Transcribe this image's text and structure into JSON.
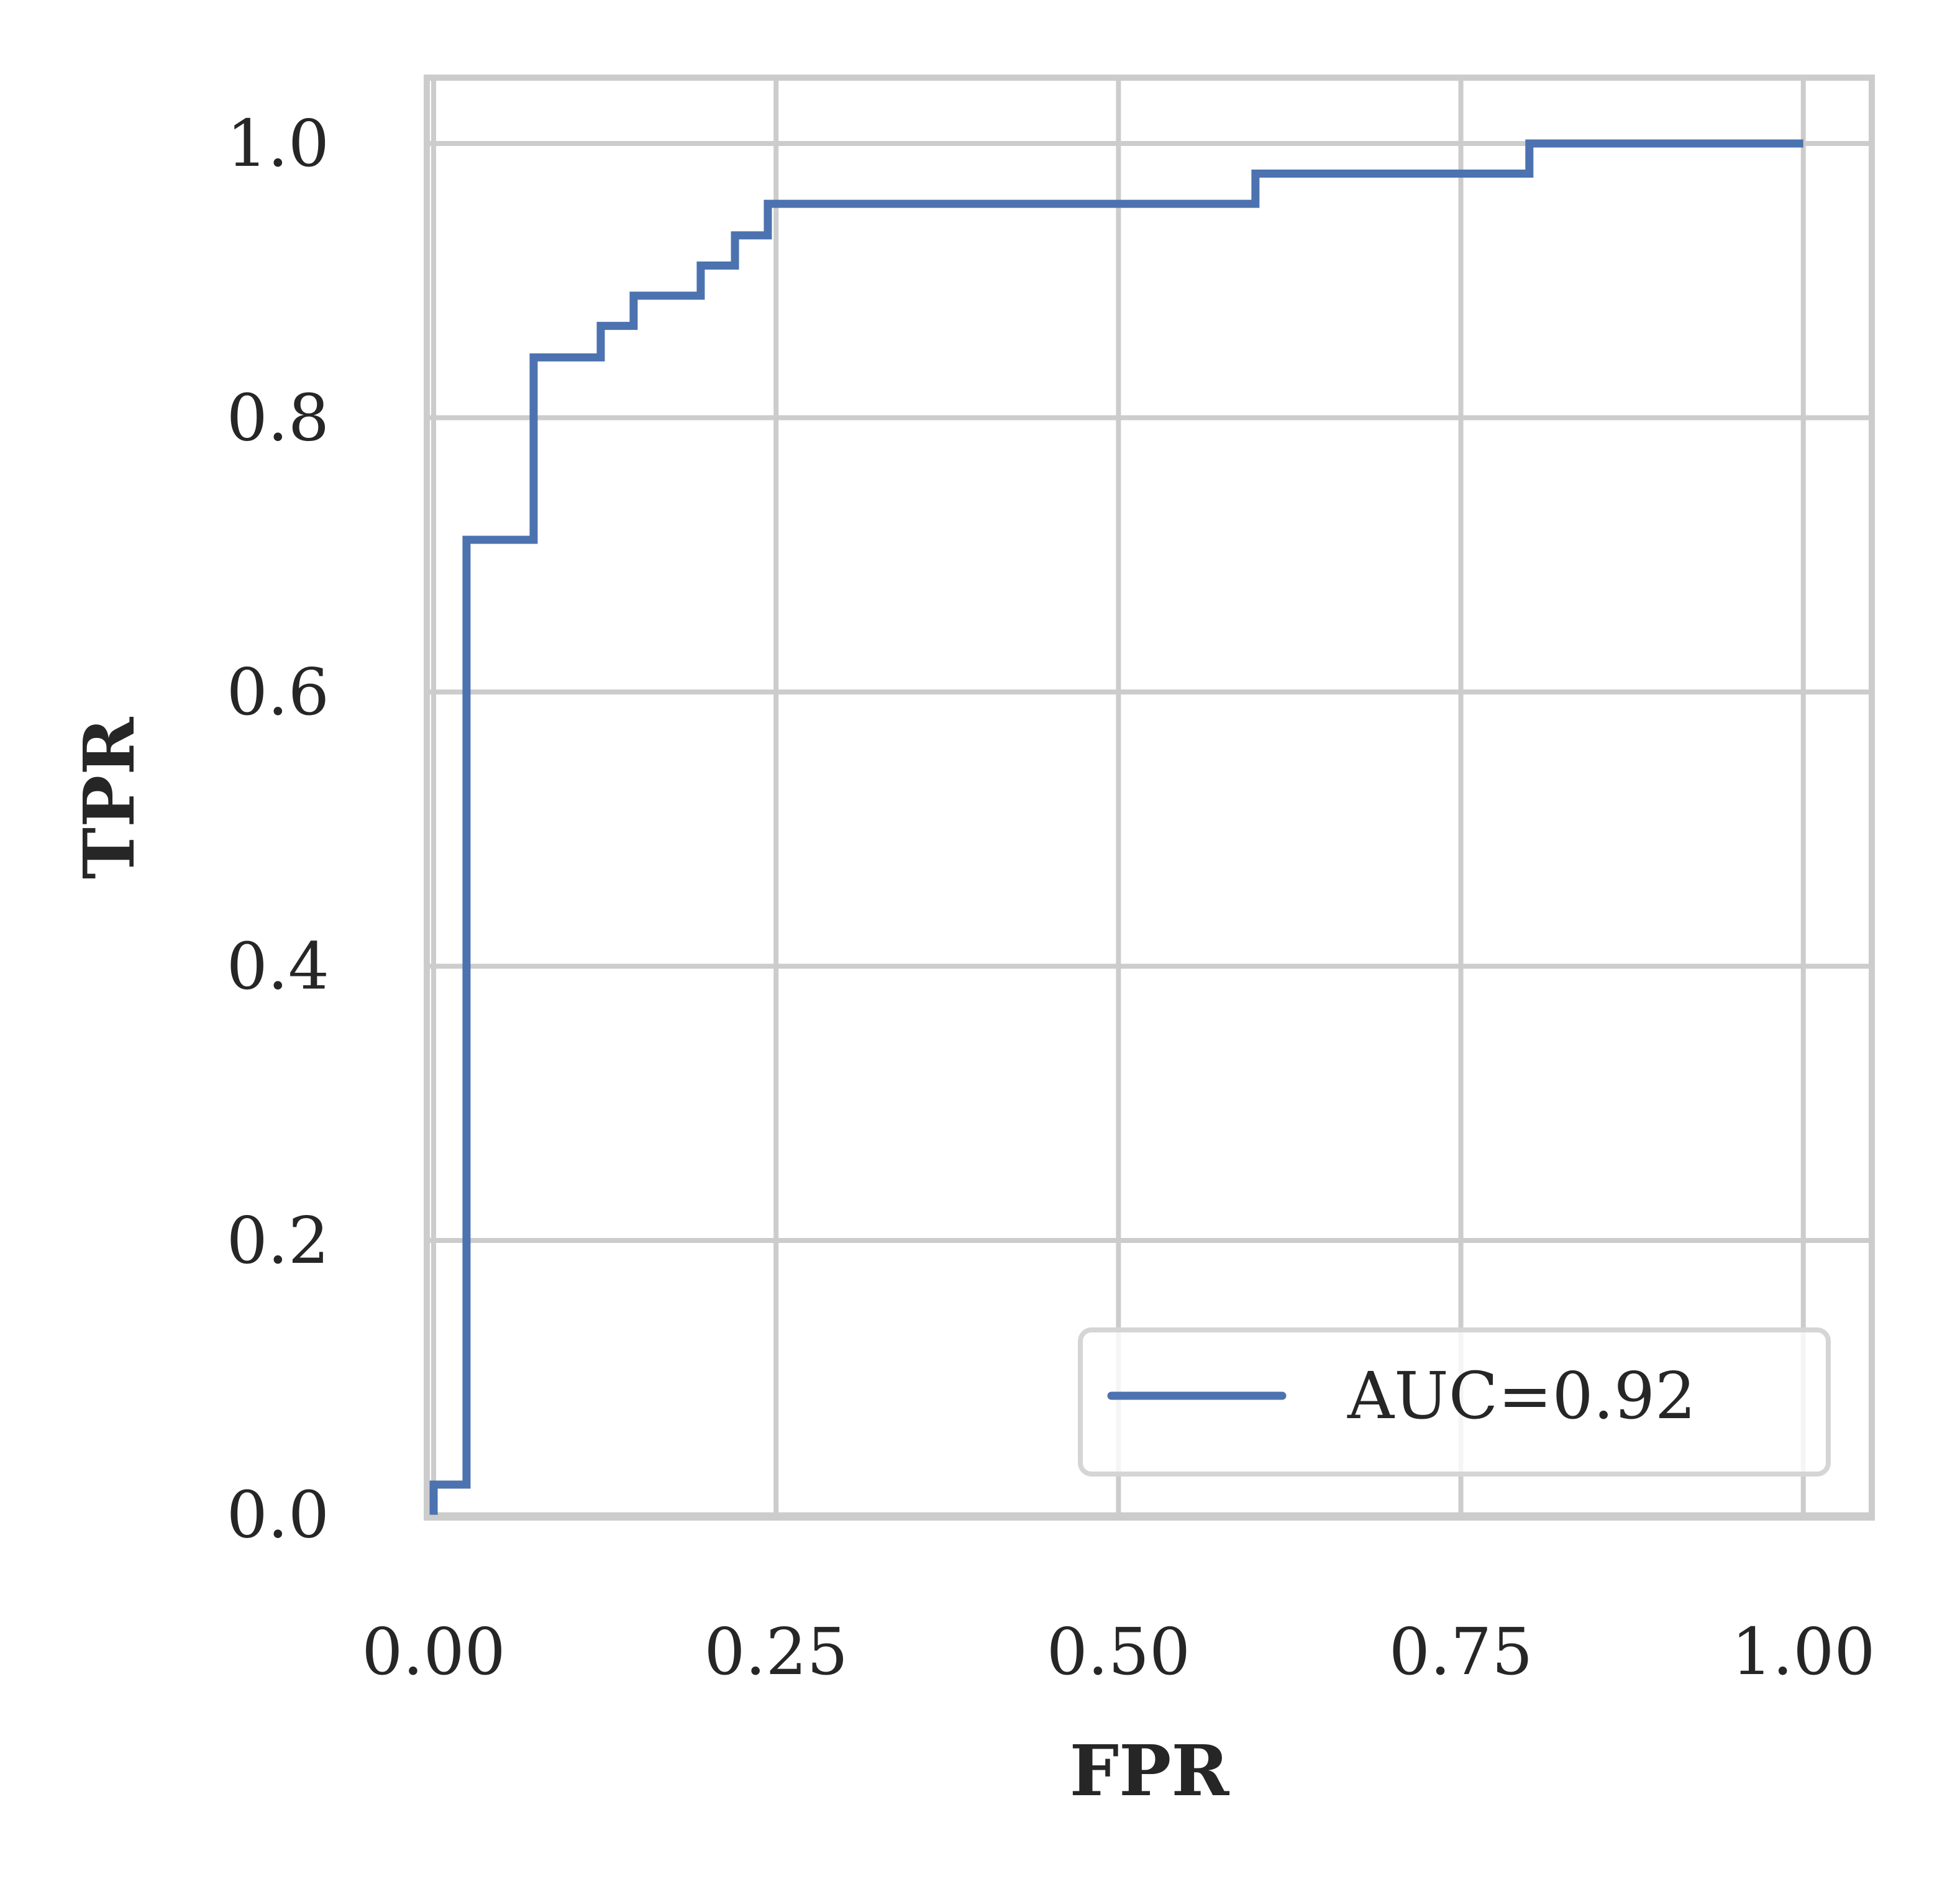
{
  "chart_data": {
    "type": "line",
    "xlabel": "FPR",
    "ylabel": "TPR",
    "x": [
      0,
      0,
      0.024,
      0.024,
      0.073,
      0.073,
      0.122,
      0.122,
      0.146,
      0.146,
      0.195,
      0.195,
      0.22,
      0.22,
      0.244,
      0.244,
      0.6,
      0.6,
      0.8,
      0.8,
      1.0
    ],
    "series": [
      {
        "name": "AUC=0.92",
        "color": "#4c72b0",
        "values": [
          0,
          0.022,
          0.022,
          0.711,
          0.711,
          0.844,
          0.844,
          0.867,
          0.867,
          0.889,
          0.889,
          0.911,
          0.911,
          0.933,
          0.933,
          0.956,
          0.956,
          0.978,
          0.978,
          1.0,
          1.0
        ]
      }
    ],
    "xlim": [
      -0.005,
      1.05
    ],
    "ylim": [
      -0.002,
      1.048
    ],
    "xticks": [
      {
        "value": 0,
        "label": "0.00"
      },
      0.25,
      {
        "value": 0.5,
        "label": "0.50"
      },
      0.75,
      {
        "value": 1,
        "label": "1.00"
      }
    ],
    "yticks": [
      {
        "value": 0,
        "label": "0.0"
      },
      0.2,
      0.4,
      0.6,
      0.8,
      {
        "value": 1,
        "label": "1.0"
      }
    ],
    "grid": true,
    "legend": "lower right"
  }
}
